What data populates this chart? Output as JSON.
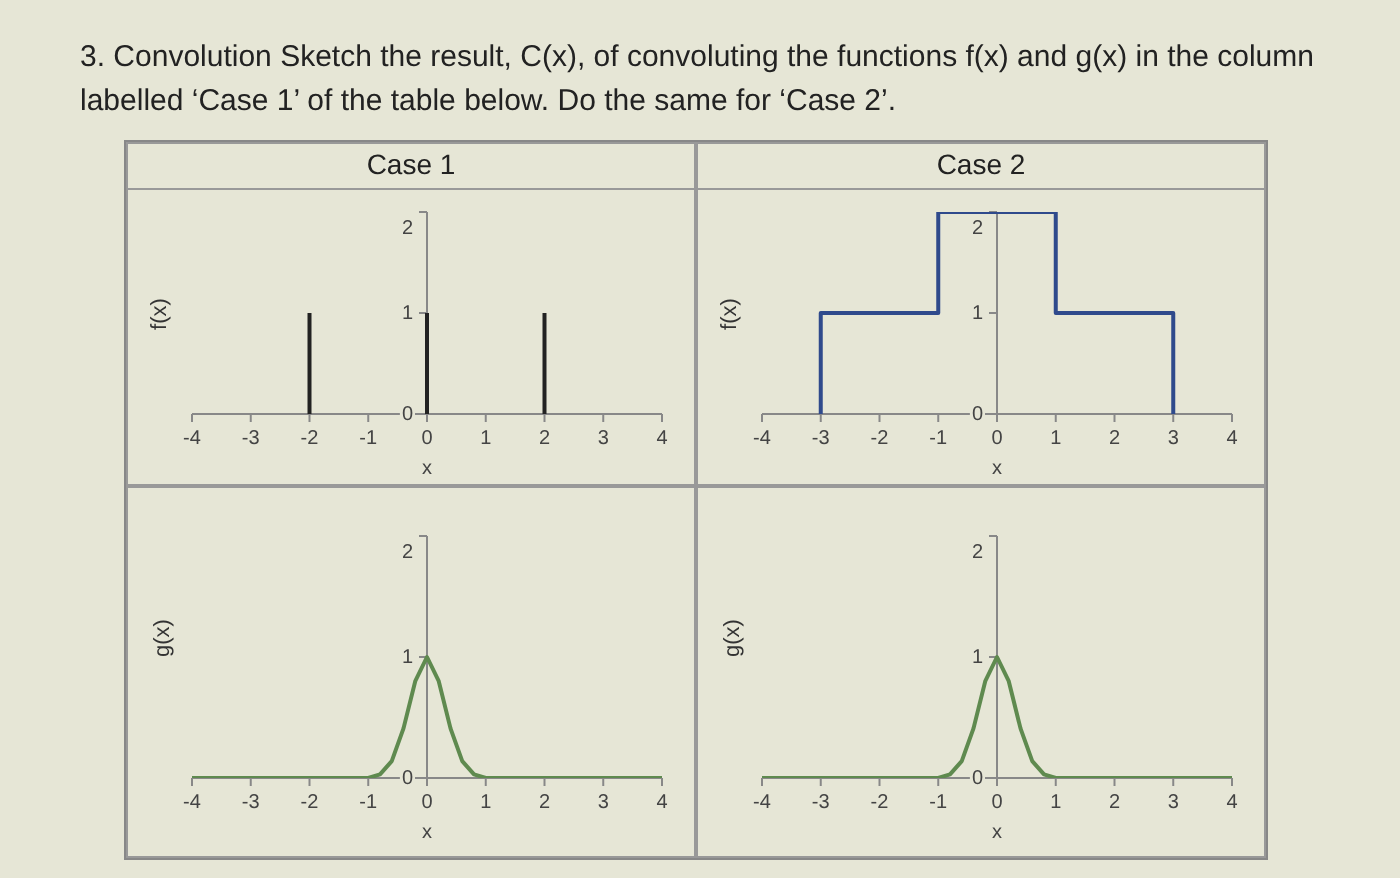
{
  "chart_data": [
    {
      "type": "line",
      "title": "Case 1",
      "annotations": [
        "3. Convolution Sketch the result, C(x), of convoluting the functions f(x) and g(x) in the column labelled ‘Case 1’ of the table below. Do the same for ‘Case 2’."
      ],
      "xlabel": "x",
      "ylabel": "f(x)",
      "marker": "none",
      "xlim": [
        -4,
        4
      ],
      "xticks": [
        -4,
        -3,
        -2,
        -1,
        0,
        1,
        2,
        3,
        4
      ],
      "ylim": [
        0,
        2
      ],
      "yticks": [
        0,
        1,
        2
      ],
      "series": [
        {
          "color": "#222222",
          "x": [
            -2,
            -2,
            null,
            0,
            0,
            null,
            2,
            2
          ],
          "values": [
            0,
            1,
            null,
            0,
            1,
            null,
            0,
            1
          ]
        }
      ]
    },
    {
      "type": "line",
      "title": "Case 2",
      "xlabel": "x",
      "ylabel": "f(x)",
      "marker": "none",
      "xlim": [
        -4,
        4
      ],
      "xticks": [
        -4,
        -3,
        -2,
        -1,
        0,
        1,
        2,
        3,
        4
      ],
      "ylim": [
        0,
        2
      ],
      "yticks": [
        0,
        1,
        2
      ],
      "series": [
        {
          "color": "#2f4a8c",
          "x": [
            -3,
            -3,
            -1,
            -1,
            1,
            1,
            3,
            3
          ],
          "values": [
            0,
            1,
            1,
            2,
            2,
            1,
            1,
            0
          ]
        }
      ]
    },
    {
      "type": "line",
      "xlabel": "x",
      "ylabel": "g(x)",
      "marker": "none",
      "xlim": [
        -4,
        4
      ],
      "xticks": [
        -4,
        -3,
        -2,
        -1,
        0,
        1,
        2,
        3,
        4
      ],
      "ylim": [
        0,
        2
      ],
      "yticks": [
        0,
        1,
        2
      ],
      "series": [
        {
          "color": "#5f8a4f",
          "x": [
            -4,
            -1,
            -0.8,
            -0.6,
            -0.4,
            -0.2,
            0,
            0.2,
            0.4,
            0.6,
            0.8,
            1,
            4
          ],
          "values": [
            0,
            0,
            0.03,
            0.14,
            0.41,
            0.8,
            1,
            0.8,
            0.41,
            0.14,
            0.03,
            0,
            0
          ]
        }
      ]
    },
    {
      "type": "line",
      "xlabel": "x",
      "ylabel": "g(x)",
      "marker": "none",
      "xlim": [
        -4,
        4
      ],
      "xticks": [
        -4,
        -3,
        -2,
        -1,
        0,
        1,
        2,
        3,
        4
      ],
      "ylim": [
        0,
        2
      ],
      "yticks": [
        0,
        1,
        2
      ],
      "series": [
        {
          "color": "#5f8a4f",
          "x": [
            -4,
            -1,
            -0.8,
            -0.6,
            -0.4,
            -0.2,
            0,
            0.2,
            0.4,
            0.6,
            0.8,
            1,
            4
          ],
          "values": [
            0,
            0,
            0.03,
            0.14,
            0.41,
            0.8,
            1,
            0.8,
            0.41,
            0.14,
            0.03,
            0,
            0
          ]
        }
      ]
    }
  ]
}
